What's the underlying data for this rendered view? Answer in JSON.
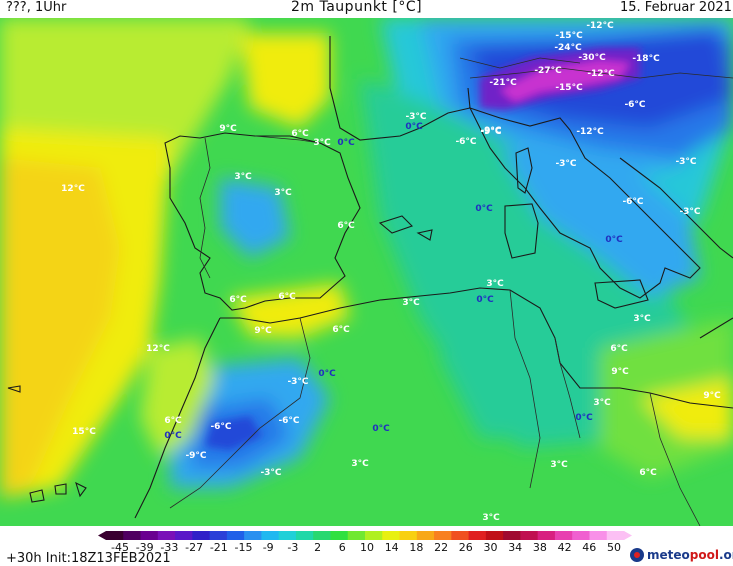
{
  "header": {
    "location": "???, 1Uhr",
    "title": "2m Taupunkt [°C]",
    "date": "15. Februar 2021"
  },
  "footer": {
    "run_info": "+30h  Init:18Z13FEB2021",
    "logo_text_a": "meteo",
    "logo_text_b": "pool",
    "logo_text_c": ".org"
  },
  "colorbar": {
    "ticks": [
      "-45",
      "-39",
      "-33",
      "-27",
      "-21",
      "-15",
      "-9",
      "-3",
      "2",
      "6",
      "10",
      "14",
      "18",
      "22",
      "26",
      "30",
      "34",
      "38",
      "42",
      "46",
      "50"
    ],
    "colors": [
      "#3a0030",
      "#4f0060",
      "#6a0090",
      "#7a10b8",
      "#5a18c8",
      "#3020c8",
      "#2a40d8",
      "#2060e8",
      "#2a90f0",
      "#20b8f0",
      "#20d0d8",
      "#20d8a8",
      "#28d870",
      "#30e040",
      "#70e830",
      "#b0f020",
      "#e8f010",
      "#f8d010",
      "#f8a818",
      "#f88020",
      "#f05020",
      "#e02020",
      "#c01018",
      "#a00a30",
      "#c01050",
      "#d82080",
      "#e840b0",
      "#f060d0",
      "#f890e8",
      "#fcc0f4"
    ]
  },
  "map": {
    "palette": {
      "sea_yellow": "#f0ec10",
      "warm_yellow": "#f4d418",
      "lime": "#b8ec30",
      "green": "#40d850",
      "light_green": "#70e040",
      "teal": "#28cc98",
      "cyan": "#28c8d8",
      "sky": "#30a8f0",
      "blue": "#2878e8",
      "deep_blue": "#2048d8",
      "purple": "#7020c8",
      "magenta": "#c830d0",
      "coast": "#1a1a1a",
      "border": "#2a2a2a",
      "label": "#ffffff",
      "label_cold": "#2030c0"
    },
    "labels": [
      {
        "text": "9°C"
      },
      {
        "text": "6°C"
      },
      {
        "text": "3°C"
      },
      {
        "text": "0°C"
      },
      {
        "text": "-3°C"
      },
      {
        "text": "0°C"
      },
      {
        "text": "-6°C"
      },
      {
        "text": "-9°C"
      },
      {
        "text": "-21°C"
      },
      {
        "text": "-15°C"
      },
      {
        "text": "-24°C"
      },
      {
        "text": "-12°C"
      },
      {
        "text": "-30°C"
      },
      {
        "text": "-27°C"
      },
      {
        "text": "-18°C"
      },
      {
        "text": "-12°C"
      },
      {
        "text": "-15°C"
      },
      {
        "text": "-6°C"
      },
      {
        "text": "-9°C"
      },
      {
        "text": "-12°C"
      },
      {
        "text": "-3°C"
      },
      {
        "text": "-3°C"
      },
      {
        "text": "-6°C"
      },
      {
        "text": "-3°C"
      },
      {
        "text": "12°C"
      },
      {
        "text": "3°C"
      },
      {
        "text": "3°C"
      },
      {
        "text": "6°C"
      },
      {
        "text": "0°C"
      },
      {
        "text": "0°C"
      },
      {
        "text": "3°C"
      },
      {
        "text": "0°C"
      },
      {
        "text": "6°C"
      },
      {
        "text": "6°C"
      },
      {
        "text": "3°C"
      },
      {
        "text": "9°C"
      },
      {
        "text": "6°C"
      },
      {
        "text": "12°C"
      },
      {
        "text": "3°C"
      },
      {
        "text": "-3°C"
      },
      {
        "text": "0°C"
      },
      {
        "text": "6°C"
      },
      {
        "text": "9°C"
      },
      {
        "text": "3°C"
      },
      {
        "text": "9°C"
      },
      {
        "text": "15°C"
      },
      {
        "text": "6°C"
      },
      {
        "text": "0°C"
      },
      {
        "text": "-6°C"
      },
      {
        "text": "-6°C"
      },
      {
        "text": "0°C"
      },
      {
        "text": "0°C"
      },
      {
        "text": "-9°C"
      },
      {
        "text": "-3°C"
      },
      {
        "text": "3°C"
      },
      {
        "text": "3°C"
      },
      {
        "text": "6°C"
      },
      {
        "text": "3°C"
      }
    ]
  }
}
